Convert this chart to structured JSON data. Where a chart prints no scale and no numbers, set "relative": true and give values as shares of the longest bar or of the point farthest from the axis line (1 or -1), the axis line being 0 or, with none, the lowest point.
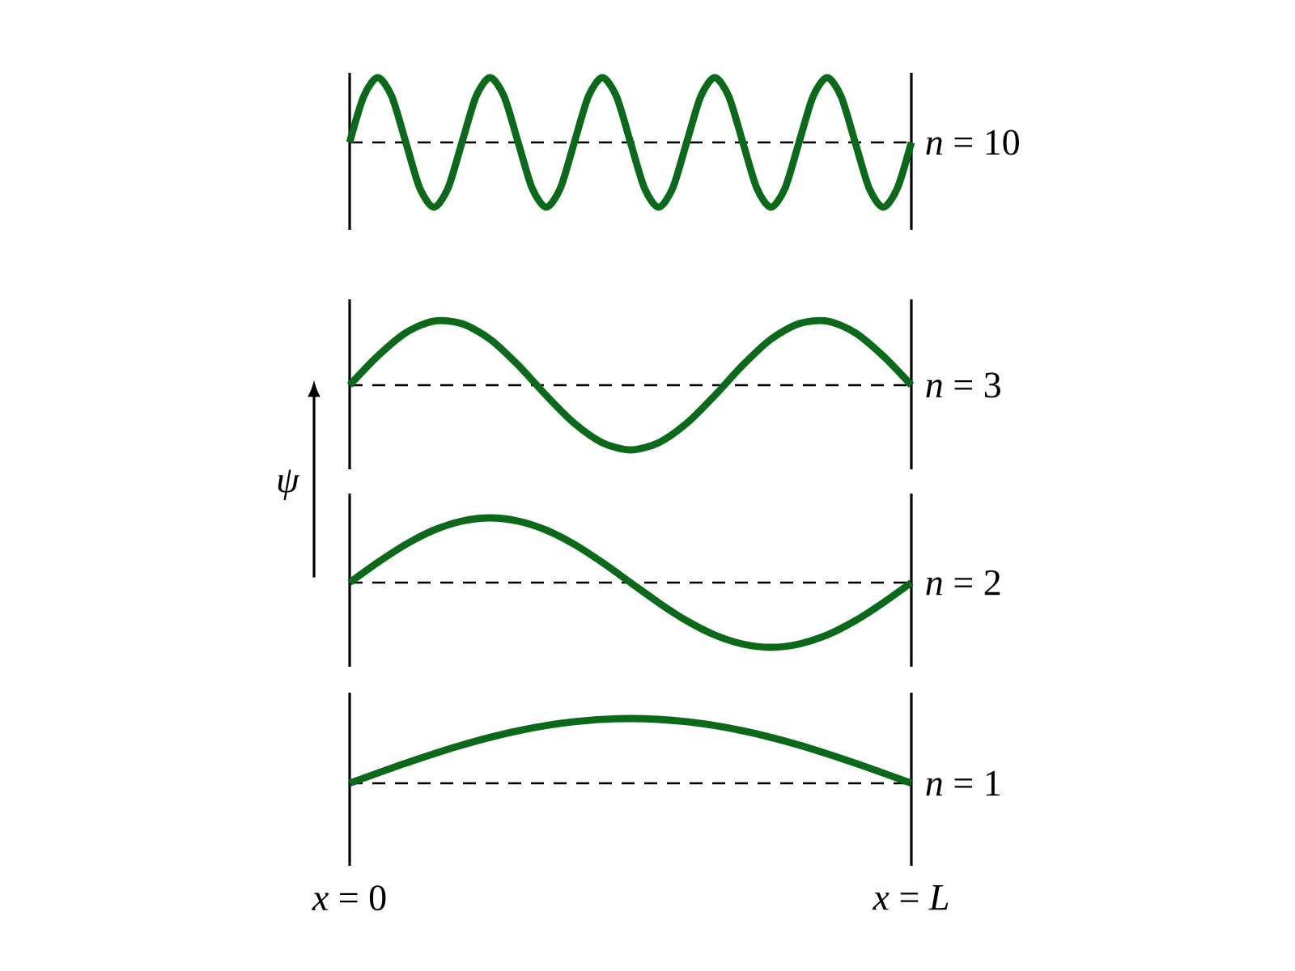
{
  "chart_data": [
    {
      "type": "line",
      "relative": true,
      "ref_lines": [
        {
          "axis": "y",
          "value": 0,
          "color": "#000000",
          "line_style": "dashed"
        }
      ],
      "categories": [
        null,
        null,
        null,
        null,
        null,
        null,
        null,
        null,
        null,
        null,
        null,
        null,
        null,
        null,
        null,
        null,
        null,
        null,
        null,
        null,
        null,
        null,
        null,
        null,
        null,
        null,
        null,
        null,
        null,
        null,
        null,
        null,
        null,
        null,
        null,
        null,
        null,
        null,
        null,
        null,
        null
      ],
      "series": [
        {
          "name": "*n* = 10",
          "color": "#0b6a1a",
          "values": [
            0,
            0.71,
            1,
            0.71,
            0,
            -0.71,
            -1,
            -0.71,
            0,
            0.71,
            1,
            0.71,
            0,
            -0.71,
            -1,
            -0.71,
            0,
            0.71,
            1,
            0.71,
            0,
            -0.71,
            -1,
            -0.71,
            0,
            0.71,
            1,
            0.71,
            0,
            -0.71,
            -1,
            -0.71,
            0,
            0.71,
            1,
            0.71,
            0,
            -0.71,
            -1,
            -0.71,
            0
          ]
        }
      ]
    },
    {
      "type": "line",
      "relative": true,
      "ref_lines": [
        {
          "axis": "y",
          "value": 0,
          "color": "#000000",
          "line_style": "dashed"
        }
      ],
      "categories": [
        null,
        null,
        null,
        null,
        null,
        null,
        null,
        null,
        null,
        null,
        null,
        null,
        null,
        null,
        null,
        null,
        null,
        null,
        null,
        null,
        null
      ],
      "series": [
        {
          "name": "*n* = 3",
          "color": "#0b6a1a",
          "values": [
            0,
            0.45,
            0.81,
            0.99,
            0.95,
            0.71,
            0.31,
            -0.16,
            -0.59,
            -0.89,
            -1,
            -0.89,
            -0.59,
            -0.16,
            0.31,
            0.71,
            0.95,
            0.99,
            0.81,
            0.45,
            0
          ]
        }
      ]
    },
    {
      "type": "line",
      "relative": true,
      "ref_lines": [
        {
          "axis": "y",
          "value": 0,
          "color": "#000000",
          "line_style": "dashed"
        }
      ],
      "ylabel": "*ψ*",
      "categories": [
        null,
        null,
        null,
        null,
        null,
        null,
        null,
        null,
        null,
        null,
        null,
        null,
        null,
        null,
        null,
        null,
        null,
        null,
        null,
        null,
        null
      ],
      "series": [
        {
          "name": "*n* = 2",
          "color": "#0b6a1a",
          "values": [
            0,
            0.31,
            0.59,
            0.81,
            0.95,
            1,
            0.95,
            0.81,
            0.59,
            0.31,
            0,
            -0.31,
            -0.59,
            -0.81,
            -0.95,
            -1,
            -0.95,
            -0.81,
            -0.59,
            -0.31,
            0
          ]
        }
      ]
    },
    {
      "type": "line",
      "relative": true,
      "ref_lines": [
        {
          "axis": "y",
          "value": 0,
          "color": "#000000",
          "line_style": "dashed"
        }
      ],
      "categories": [
        "*x* = 0",
        null,
        null,
        null,
        null,
        null,
        null,
        null,
        null,
        null,
        "*x* = *L*"
      ],
      "series": [
        {
          "name": "*n* = 1",
          "color": "#0b6a1a",
          "values": [
            0,
            0.31,
            0.59,
            0.81,
            0.95,
            1,
            0.95,
            0.81,
            0.59,
            0.31,
            0
          ]
        }
      ]
    }
  ]
}
